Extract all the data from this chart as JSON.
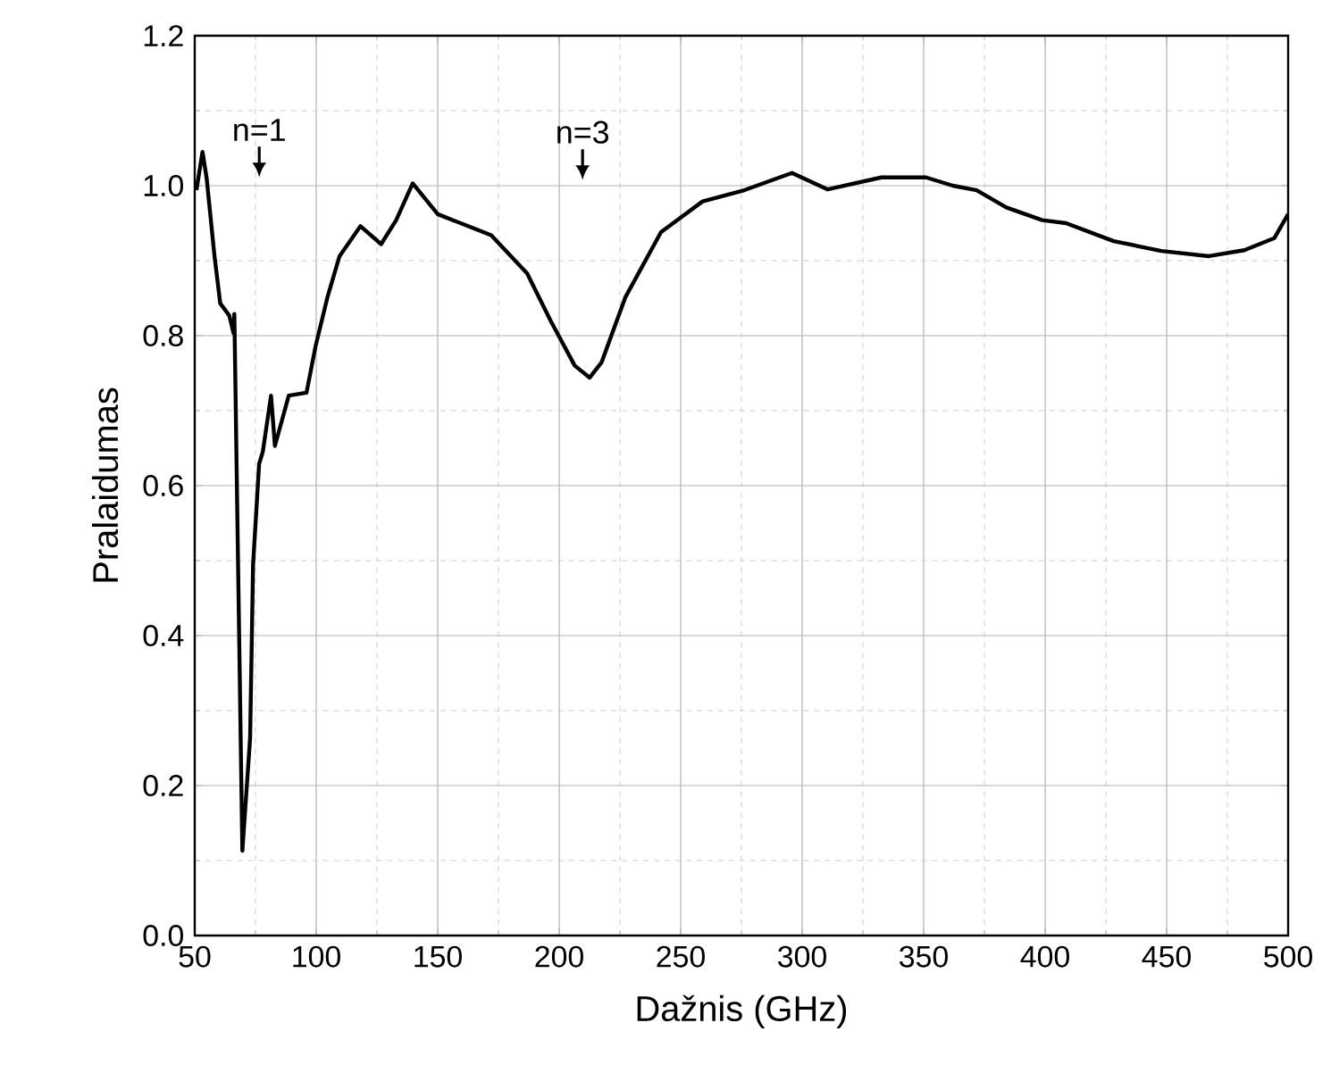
{
  "chart_data": {
    "type": "line",
    "xlabel": "Dažnis (GHz)",
    "ylabel": "Pralaidumas",
    "xlim": [
      50,
      500
    ],
    "ylim": [
      0,
      1.2
    ],
    "xticks": [
      50,
      100,
      150,
      200,
      250,
      300,
      350,
      400,
      450,
      500
    ],
    "yticks": [
      {
        "value": 0,
        "label": "0.0"
      },
      {
        "value": 0.2,
        "label": "0.2"
      },
      {
        "value": 0.4,
        "label": "0.4"
      },
      {
        "value": 0.6,
        "label": "0.6"
      },
      {
        "value": 0.8,
        "label": "0.8"
      },
      {
        "value": 1.0,
        "label": "1.0"
      },
      {
        "value": 1.2,
        "label": "1.2"
      }
    ],
    "grid": true,
    "marker": "none",
    "line_style": "solid",
    "annotations": [
      "n=1",
      "n=3"
    ],
    "series": [
      {
        "color": "#000000",
        "x": [
          50.7,
          53.2,
          54.9,
          58.1,
          60.5,
          64.2,
          66,
          66.3,
          69.6,
          72.8,
          74,
          76.5,
          78,
          81.4,
          83,
          88.7,
          96,
          99.8,
          104.6,
          109.6,
          118.2,
          126.7,
          132.9,
          139.7,
          150,
          172,
          186.8,
          196.6,
          206.4,
          212.5,
          217.4,
          227.2,
          241.9,
          259,
          276.2,
          295.8,
          310.5,
          332.6,
          351,
          362,
          371.8,
          384,
          398.8,
          408.6,
          428.2,
          447.8,
          467.4,
          482,
          494.3,
          500
        ],
        "values": [
          0.994,
          1.045,
          1.01,
          0.907,
          0.843,
          0.827,
          0.803,
          0.829,
          0.113,
          0.264,
          0.494,
          0.629,
          0.645,
          0.72,
          0.653,
          0.72,
          0.724,
          0.787,
          0.851,
          0.906,
          0.946,
          0.922,
          0.954,
          1.003,
          0.962,
          0.934,
          0.883,
          0.819,
          0.76,
          0.744,
          0.764,
          0.851,
          0.938,
          0.979,
          0.994,
          1.017,
          0.995,
          1.011,
          1.011,
          1.0,
          0.994,
          0.971,
          0.954,
          0.95,
          0.926,
          0.913,
          0.906,
          0.914,
          0.93,
          0.962
        ]
      }
    ]
  }
}
